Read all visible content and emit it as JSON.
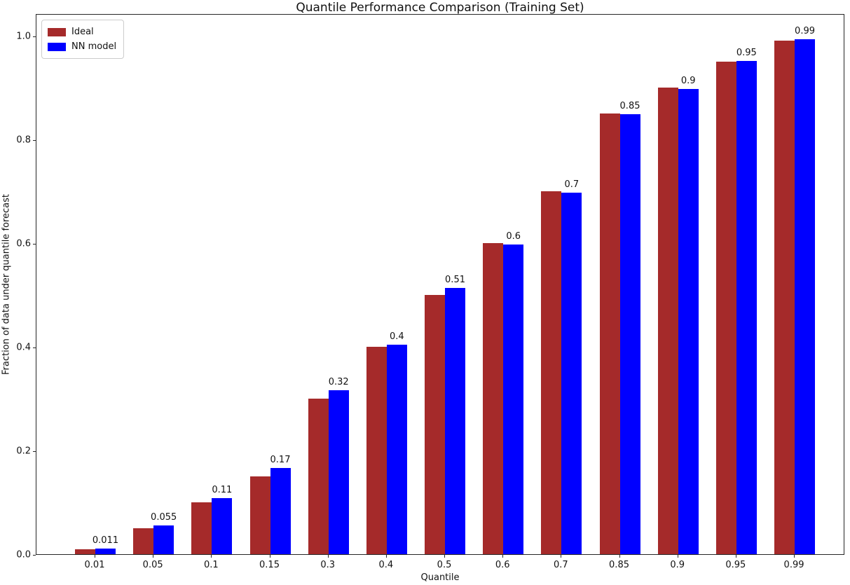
{
  "chart_data": {
    "type": "bar",
    "title": "Quantile Performance Comparison (Training Set)",
    "xlabel": "Quantile",
    "ylabel": "Fraction of data under quantile forecast",
    "categories": [
      "0.01",
      "0.05",
      "0.1",
      "0.15",
      "0.3",
      "0.4",
      "0.5",
      "0.6",
      "0.7",
      "0.85",
      "0.9",
      "0.95",
      "0.99"
    ],
    "series": [
      {
        "name": "Ideal",
        "color": "#A52A2A",
        "values": [
          0.01,
          0.05,
          0.1,
          0.15,
          0.3,
          0.4,
          0.5,
          0.6,
          0.7,
          0.85,
          0.9,
          0.95,
          0.99
        ]
      },
      {
        "name": "NN model",
        "color": "#0000FF",
        "values": [
          0.011,
          0.055,
          0.108,
          0.166,
          0.316,
          0.404,
          0.513,
          0.597,
          0.697,
          0.848,
          0.897,
          0.951,
          0.993
        ]
      }
    ],
    "bar_labels": [
      "0.011",
      "0.055",
      "0.11",
      "0.17",
      "0.32",
      "0.4",
      "0.51",
      "0.6",
      "0.7",
      "0.85",
      "0.9",
      "0.95",
      "0.99"
    ],
    "yticks": [
      "0.0",
      "0.2",
      "0.4",
      "0.6",
      "0.8",
      "1.0"
    ],
    "ylim": [
      0.0,
      1.043
    ],
    "legend_position": "upper left",
    "grid": false,
    "background_color": "#ffffff"
  }
}
